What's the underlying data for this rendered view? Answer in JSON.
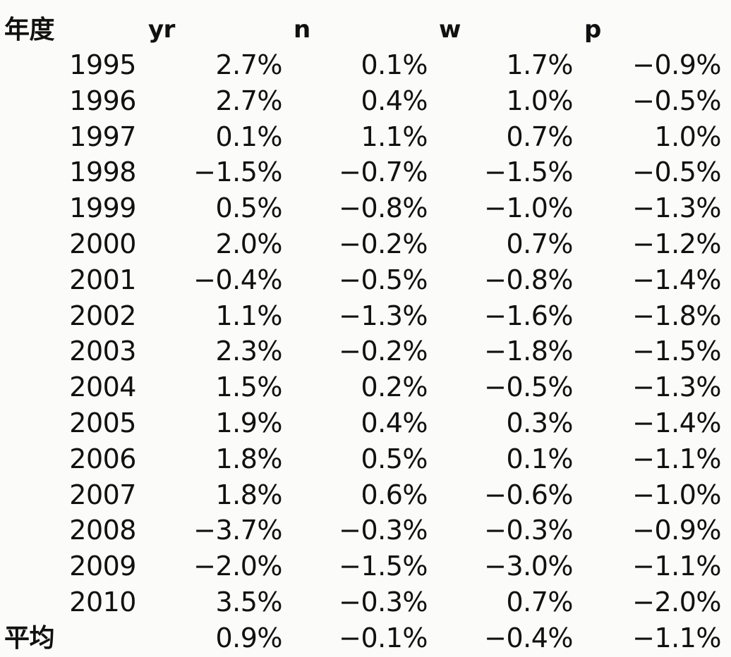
{
  "header": {
    "year_label": "年度",
    "cols": [
      "yr",
      "n",
      "w",
      "p"
    ]
  },
  "rows": [
    {
      "year": "1995",
      "values": [
        "2.7%",
        "0.1%",
        "1.7%",
        "−0.9%"
      ]
    },
    {
      "year": "1996",
      "values": [
        "2.7%",
        "0.4%",
        "1.0%",
        "−0.5%"
      ]
    },
    {
      "year": "1997",
      "values": [
        "0.1%",
        "1.1%",
        "0.7%",
        "1.0%"
      ]
    },
    {
      "year": "1998",
      "values": [
        "−1.5%",
        "−0.7%",
        "−1.5%",
        "−0.5%"
      ]
    },
    {
      "year": "1999",
      "values": [
        "0.5%",
        "−0.8%",
        "−1.0%",
        "−1.3%"
      ]
    },
    {
      "year": "2000",
      "values": [
        "2.0%",
        "−0.2%",
        "0.7%",
        "−1.2%"
      ]
    },
    {
      "year": "2001",
      "values": [
        "−0.4%",
        "−0.5%",
        "−0.8%",
        "−1.4%"
      ]
    },
    {
      "year": "2002",
      "values": [
        "1.1%",
        "−1.3%",
        "−1.6%",
        "−1.8%"
      ]
    },
    {
      "year": "2003",
      "values": [
        "2.3%",
        "−0.2%",
        "−1.8%",
        "−1.5%"
      ]
    },
    {
      "year": "2004",
      "values": [
        "1.5%",
        "0.2%",
        "−0.5%",
        "−1.3%"
      ]
    },
    {
      "year": "2005",
      "values": [
        "1.9%",
        "0.4%",
        "0.3%",
        "−1.4%"
      ]
    },
    {
      "year": "2006",
      "values": [
        "1.8%",
        "0.5%",
        "0.1%",
        "−1.1%"
      ]
    },
    {
      "year": "2007",
      "values": [
        "1.8%",
        "0.6%",
        "−0.6%",
        "−1.0%"
      ]
    },
    {
      "year": "2008",
      "values": [
        "−3.7%",
        "−0.3%",
        "−0.3%",
        "−0.9%"
      ]
    },
    {
      "year": "2009",
      "values": [
        "−2.0%",
        "−1.5%",
        "−3.0%",
        "−1.1%"
      ]
    },
    {
      "year": "2010",
      "values": [
        "3.5%",
        "−0.3%",
        "0.7%",
        "−2.0%"
      ]
    }
  ],
  "average": {
    "label": "平均",
    "values": [
      "0.9%",
      "−0.1%",
      "−0.4%",
      "−1.1%"
    ]
  }
}
